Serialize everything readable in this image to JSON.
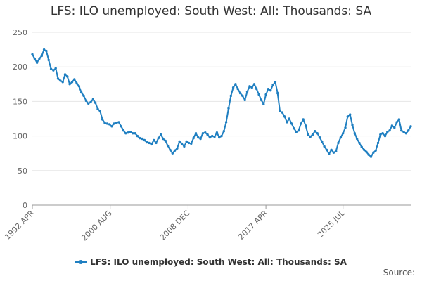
{
  "chart_data": {
    "type": "line",
    "title": "LFS: ILO unemployed: South West: All: Thousands: SA",
    "xlabel": "",
    "ylabel": "",
    "ylim": [
      0,
      250
    ],
    "y_ticks": [
      0,
      50,
      100,
      150,
      200,
      250
    ],
    "x_tick_labels": [
      "1992 APR",
      "2000 AUG",
      "2008 DEC",
      "2017 APR",
      "2025 JUL"
    ],
    "x_tick_years": [
      1992.25,
      2000.58,
      2008.92,
      2017.25,
      2025.5
    ],
    "grid": "horizontal",
    "legend_position": "bottom",
    "series": [
      {
        "name": "LFS: ILO unemployed: South West: All: Thousands: SA",
        "color": "#1f7fc1",
        "points": [
          [
            1992.25,
            218
          ],
          [
            1992.5,
            212
          ],
          [
            1992.75,
            206
          ],
          [
            1993.0,
            212
          ],
          [
            1993.25,
            216
          ],
          [
            1993.5,
            225
          ],
          [
            1993.75,
            223
          ],
          [
            1994.0,
            210
          ],
          [
            1994.25,
            197
          ],
          [
            1994.5,
            195
          ],
          [
            1994.75,
            198
          ],
          [
            1995.0,
            183
          ],
          [
            1995.25,
            180
          ],
          [
            1995.5,
            178
          ],
          [
            1995.75,
            189
          ],
          [
            1996.0,
            186
          ],
          [
            1996.25,
            175
          ],
          [
            1996.5,
            178
          ],
          [
            1996.75,
            182
          ],
          [
            1997.0,
            176
          ],
          [
            1997.25,
            172
          ],
          [
            1997.5,
            163
          ],
          [
            1997.75,
            158
          ],
          [
            1998.0,
            151
          ],
          [
            1998.25,
            147
          ],
          [
            1998.5,
            149
          ],
          [
            1998.75,
            153
          ],
          [
            1999.0,
            148
          ],
          [
            1999.25,
            139
          ],
          [
            1999.5,
            136
          ],
          [
            1999.75,
            124
          ],
          [
            2000.0,
            119
          ],
          [
            2000.25,
            118
          ],
          [
            2000.5,
            117
          ],
          [
            2000.75,
            114
          ],
          [
            2001.0,
            118
          ],
          [
            2001.25,
            119
          ],
          [
            2001.5,
            120
          ],
          [
            2001.75,
            114
          ],
          [
            2002.0,
            108
          ],
          [
            2002.25,
            104
          ],
          [
            2002.5,
            105
          ],
          [
            2002.75,
            106
          ],
          [
            2003.0,
            104
          ],
          [
            2003.25,
            104
          ],
          [
            2003.5,
            100
          ],
          [
            2003.75,
            97
          ],
          [
            2004.0,
            96
          ],
          [
            2004.25,
            94
          ],
          [
            2004.5,
            91
          ],
          [
            2004.75,
            90
          ],
          [
            2005.0,
            88
          ],
          [
            2005.25,
            94
          ],
          [
            2005.5,
            90
          ],
          [
            2005.75,
            97
          ],
          [
            2006.0,
            102
          ],
          [
            2006.25,
            96
          ],
          [
            2006.5,
            93
          ],
          [
            2006.75,
            86
          ],
          [
            2007.0,
            80
          ],
          [
            2007.25,
            75
          ],
          [
            2007.5,
            79
          ],
          [
            2007.75,
            82
          ],
          [
            2008.0,
            92
          ],
          [
            2008.25,
            89
          ],
          [
            2008.5,
            85
          ],
          [
            2008.75,
            92
          ],
          [
            2009.0,
            90
          ],
          [
            2009.25,
            89
          ],
          [
            2009.5,
            97
          ],
          [
            2009.75,
            104
          ],
          [
            2010.0,
            98
          ],
          [
            2010.25,
            96
          ],
          [
            2010.5,
            104
          ],
          [
            2010.75,
            105
          ],
          [
            2011.0,
            102
          ],
          [
            2011.25,
            98
          ],
          [
            2011.5,
            100
          ],
          [
            2011.75,
            99
          ],
          [
            2012.0,
            105
          ],
          [
            2012.25,
            98
          ],
          [
            2012.5,
            100
          ],
          [
            2012.75,
            107
          ],
          [
            2013.0,
            120
          ],
          [
            2013.25,
            140
          ],
          [
            2013.5,
            158
          ],
          [
            2013.75,
            170
          ],
          [
            2014.0,
            175
          ],
          [
            2014.25,
            168
          ],
          [
            2014.5,
            162
          ],
          [
            2014.75,
            158
          ],
          [
            2015.0,
            152
          ],
          [
            2015.25,
            164
          ],
          [
            2015.5,
            172
          ],
          [
            2015.75,
            170
          ],
          [
            2016.0,
            175
          ],
          [
            2016.25,
            168
          ],
          [
            2016.5,
            160
          ],
          [
            2016.75,
            152
          ],
          [
            2017.0,
            146
          ],
          [
            2017.25,
            160
          ],
          [
            2017.5,
            168
          ],
          [
            2017.75,
            166
          ],
          [
            2018.0,
            174
          ],
          [
            2018.25,
            178
          ],
          [
            2018.5,
            162
          ],
          [
            2018.75,
            136
          ],
          [
            2019.0,
            134
          ],
          [
            2019.25,
            128
          ],
          [
            2019.5,
            120
          ],
          [
            2019.75,
            125
          ],
          [
            2020.0,
            118
          ],
          [
            2020.25,
            111
          ],
          [
            2020.5,
            106
          ],
          [
            2020.75,
            108
          ],
          [
            2021.0,
            118
          ],
          [
            2021.25,
            124
          ],
          [
            2021.5,
            115
          ],
          [
            2021.75,
            102
          ],
          [
            2022.0,
            99
          ],
          [
            2022.25,
            102
          ],
          [
            2022.5,
            107
          ],
          [
            2022.75,
            104
          ],
          [
            2023.0,
            98
          ],
          [
            2023.25,
            92
          ],
          [
            2023.5,
            85
          ],
          [
            2023.75,
            80
          ],
          [
            2024.0,
            74
          ],
          [
            2024.25,
            80
          ],
          [
            2024.5,
            76
          ],
          [
            2024.75,
            78
          ],
          [
            2025.0,
            90
          ],
          [
            2025.25,
            98
          ],
          [
            2025.5,
            104
          ],
          [
            2025.75,
            112
          ],
          [
            2026.0,
            128
          ],
          [
            2026.25,
            131
          ],
          [
            2026.5,
            116
          ],
          [
            2026.75,
            104
          ],
          [
            2027.0,
            96
          ],
          [
            2027.25,
            90
          ],
          [
            2027.5,
            84
          ],
          [
            2027.75,
            80
          ],
          [
            2028.0,
            77
          ],
          [
            2028.25,
            73
          ],
          [
            2028.5,
            70
          ],
          [
            2028.75,
            76
          ],
          [
            2029.0,
            79
          ],
          [
            2029.25,
            90
          ],
          [
            2029.5,
            102
          ],
          [
            2029.75,
            104
          ],
          [
            2030.0,
            100
          ],
          [
            2030.25,
            106
          ],
          [
            2030.5,
            108
          ],
          [
            2030.75,
            115
          ],
          [
            2031.0,
            112
          ],
          [
            2031.25,
            120
          ],
          [
            2031.5,
            124
          ],
          [
            2031.75,
            108
          ],
          [
            2032.0,
            106
          ],
          [
            2032.25,
            104
          ],
          [
            2032.5,
            108
          ],
          [
            2032.75,
            114
          ]
        ]
      }
    ]
  },
  "legend": {
    "label": "LFS: ILO unemployed: South West: All: Thousands: SA",
    "icon": "line-marker-icon"
  },
  "source_label": "Source:"
}
